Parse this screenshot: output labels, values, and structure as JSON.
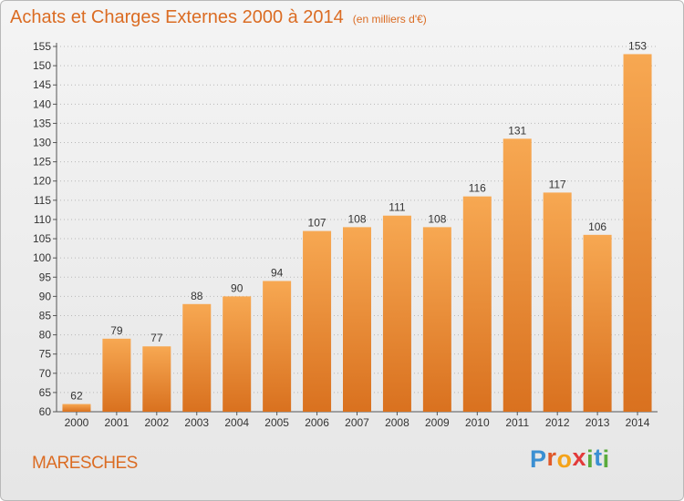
{
  "header": {
    "title": "Achats et Charges Externes 2000 à 2014",
    "unit": "(en milliers d'€)"
  },
  "footer": {
    "commune": "MARESCHES",
    "brand": [
      "P",
      "r",
      "o",
      "x",
      "i",
      "t",
      "i"
    ],
    "brand_colors": [
      "#3a8fd2",
      "#e0592a",
      "#f5a31a",
      "#e23a3a",
      "#5aab3c",
      "#3a8fd2",
      "#5aab3c"
    ]
  },
  "colors": {
    "bar_light": "#f7a852",
    "bar_dark": "#d9711f",
    "title": "#db6c23",
    "axis": "#555555",
    "grid": "#b8b8b8"
  },
  "chart_data": {
    "type": "bar",
    "title": "Achats et Charges Externes 2000 à 2014",
    "subtitle": "(en milliers d'€)",
    "xlabel": "",
    "ylabel": "",
    "categories": [
      "2000",
      "2001",
      "2002",
      "2003",
      "2004",
      "2005",
      "2006",
      "2007",
      "2008",
      "2009",
      "2010",
      "2011",
      "2012",
      "2013",
      "2014"
    ],
    "values": [
      62,
      79,
      77,
      88,
      90,
      94,
      107,
      108,
      111,
      108,
      116,
      131,
      117,
      106,
      153
    ],
    "ylim": [
      60,
      155
    ],
    "yticks": [
      60,
      65,
      70,
      75,
      80,
      85,
      90,
      95,
      100,
      105,
      110,
      115,
      120,
      125,
      130,
      135,
      140,
      145,
      150,
      155
    ],
    "grid": "horizontal dotted",
    "legend": "none"
  }
}
